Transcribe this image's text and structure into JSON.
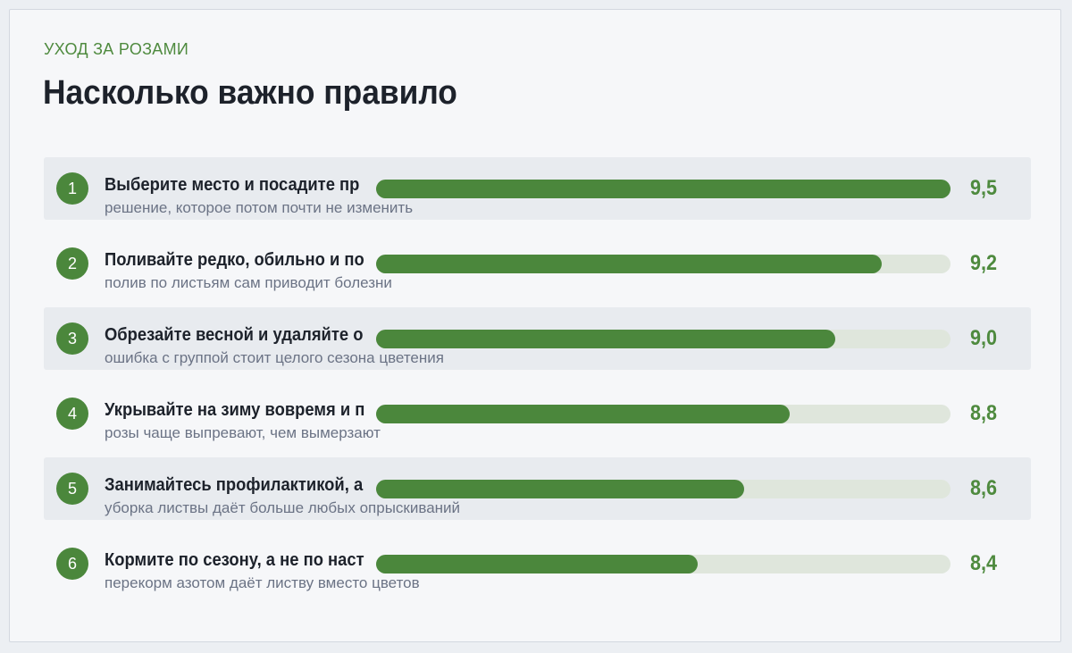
{
  "header": {
    "eyebrow": "УХОД ЗА РОЗАМИ",
    "title": "Насколько важно правило"
  },
  "colors": {
    "accent": "#4b873c",
    "track": "#dfe6dc",
    "row_shade": "#e8ebef"
  },
  "chart_data": {
    "type": "bar",
    "orientation": "horizontal",
    "title": "Насколько важно правило",
    "categories": [
      "Выберите место и посадите пр",
      "Поливайте редко, обильно и по",
      "Обрезайте весной и удаляйте о",
      "Укрывайте на зиму вовремя и п",
      "Занимайтесь профилактикой, а",
      "Кормите по сезону, а не по наст"
    ],
    "values": [
      9.5,
      9.2,
      9.0,
      8.8,
      8.6,
      8.4
    ],
    "xlim": [
      7.0,
      9.5
    ],
    "rows": [
      {
        "rank": "1",
        "label": "Выберите место и посадите пр",
        "note": "решение, которое потом почти не изменить",
        "value": 9.5,
        "value_label": "9,5"
      },
      {
        "rank": "2",
        "label": "Поливайте редко, обильно и по",
        "note": "полив по листьям сам приводит болезни",
        "value": 9.2,
        "value_label": "9,2"
      },
      {
        "rank": "3",
        "label": "Обрезайте весной и удаляйте о",
        "note": "ошибка с группой стоит целого сезона цветения",
        "value": 9.0,
        "value_label": "9,0"
      },
      {
        "rank": "4",
        "label": "Укрывайте на зиму вовремя и п",
        "note": "розы чаще выпревают, чем вымерзают",
        "value": 8.8,
        "value_label": "8,8"
      },
      {
        "rank": "5",
        "label": "Занимайтесь профилактикой, а",
        "note": "уборка листвы даёт больше любых опрыскиваний",
        "value": 8.6,
        "value_label": "8,6"
      },
      {
        "rank": "6",
        "label": "Кормите по сезону, а не по наст",
        "note": "перекорм азотом даёт листву вместо цветов",
        "value": 8.4,
        "value_label": "8,4"
      }
    ]
  }
}
